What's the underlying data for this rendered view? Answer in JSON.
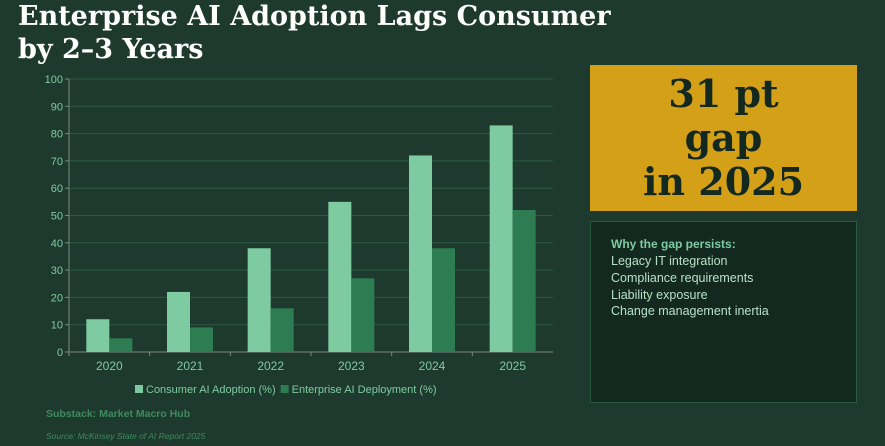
{
  "colors": {
    "background": "#1e3a2f",
    "consumer": "#7ecba1",
    "enterprise": "#2e7d52",
    "gap_box": "#d4a017",
    "grid": "#2c5a40",
    "axis_text": "#7ecba1"
  },
  "chart_data": {
    "type": "bar",
    "title": "Enterprise AI Adoption Lags Consumer by 2–3 Years",
    "categories": [
      "2020",
      "2021",
      "2022",
      "2023",
      "2024",
      "2025"
    ],
    "series": [
      {
        "name": "Consumer AI Adoption (%)",
        "values": [
          12,
          22,
          38,
          55,
          72,
          83
        ]
      },
      {
        "name": "Enterprise AI Deployment (%)",
        "values": [
          5,
          9,
          16,
          27,
          38,
          52
        ]
      }
    ],
    "yticks": [
      0,
      10,
      20,
      30,
      40,
      50,
      60,
      70,
      80,
      90,
      100
    ],
    "ylim": [
      0,
      100
    ],
    "xlabel": "",
    "ylabel": "",
    "grid": true,
    "legend": "bottom"
  },
  "callout": {
    "line1": "31 pt",
    "line2": "gap",
    "line3": "in 2025"
  },
  "why": {
    "heading": "Why the gap persists:",
    "items": [
      "Legacy IT integration",
      "Compliance requirements",
      "Liability exposure",
      "Change management inertia"
    ]
  },
  "credit": "Substack: Market Macro Hub",
  "source": "Source: McKinsey State of AI Report 2025"
}
